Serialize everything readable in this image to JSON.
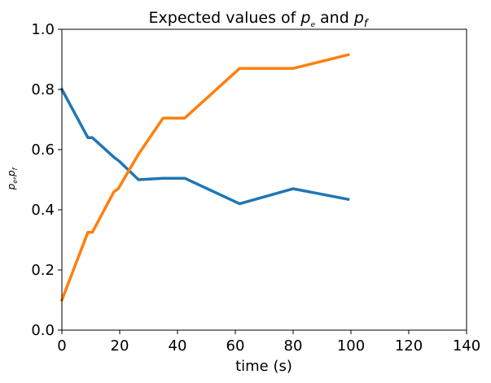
{
  "chart_data": {
    "type": "line",
    "title": "Expected values of p_e and p_f",
    "title_parts": {
      "prefix": "Expected values of ",
      "var1": "p",
      "sub1": "e",
      "mid": " and ",
      "var2": "p",
      "sub2": "f"
    },
    "xlabel": "time (s)",
    "ylabel": "p_e, p_f",
    "ylabel_parts": {
      "v1": "p",
      "s1": "e",
      "sep": ",",
      "v2": "p",
      "s2": "f"
    },
    "xlim": [
      0,
      140
    ],
    "ylim": [
      0.0,
      1.0
    ],
    "xticks": [
      0,
      20,
      40,
      60,
      80,
      100,
      120,
      140
    ],
    "xtick_labels": [
      "0",
      "20",
      "40",
      "60",
      "80",
      "100",
      "120",
      "140"
    ],
    "yticks": [
      0.0,
      0.2,
      0.4,
      0.6,
      0.8,
      1.0
    ],
    "ytick_labels": [
      "0.0",
      "0.2",
      "0.4",
      "0.6",
      "0.8",
      "1.0"
    ],
    "grid": false,
    "series": [
      {
        "color": "#1f77b4",
        "x": [
          0,
          9,
          10.5,
          18,
          20,
          26.5,
          35,
          42.5,
          61.5,
          80,
          99
        ],
        "y": [
          0.8,
          0.64,
          0.64,
          0.575,
          0.56,
          0.5,
          0.505,
          0.505,
          0.42,
          0.47,
          0.435
        ]
      },
      {
        "color": "#ff7f0e",
        "x": [
          0,
          9,
          10.5,
          18,
          19.5,
          26.5,
          35,
          42.5,
          61.5,
          80,
          99
        ],
        "y": [
          0.1,
          0.325,
          0.325,
          0.46,
          0.47,
          0.585,
          0.705,
          0.705,
          0.87,
          0.87,
          0.915
        ]
      }
    ]
  }
}
